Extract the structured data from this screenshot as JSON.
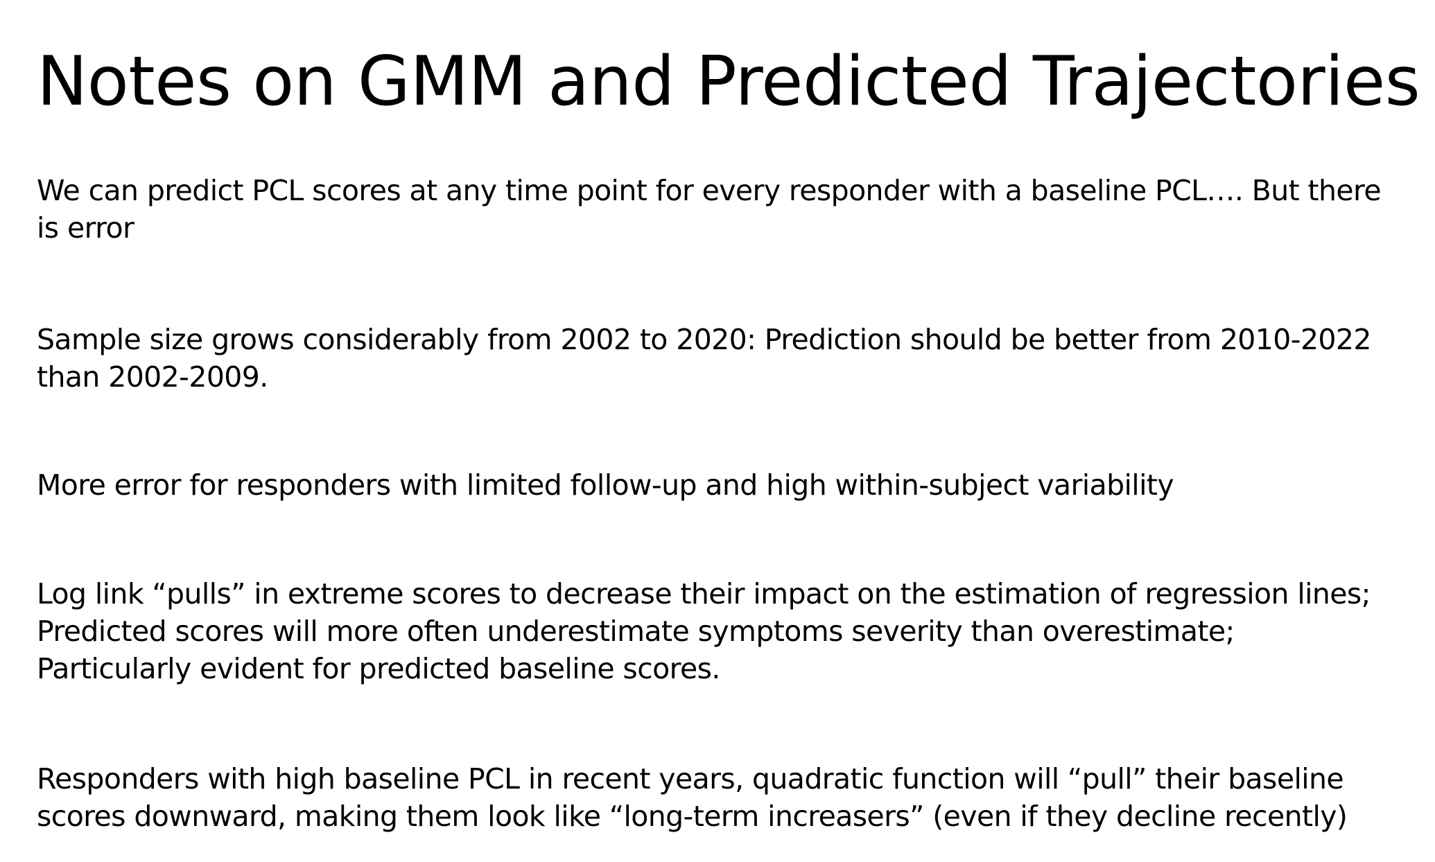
{
  "title": "Notes on GMM and Predicted Trajectories",
  "notes": [
    {
      "lines": [
        "We can predict PCL scores at any time point for every responder with a baseline PCL…. But there",
        "is error"
      ]
    },
    {
      "lines": [
        "Sample size grows considerably from 2002 to 2020: Prediction should be better from 2010-2022",
        "than 2002-2009."
      ]
    },
    {
      "lines": [
        "More error for responders with limited follow-up and high within-subject variability"
      ]
    },
    {
      "lines": [
        "Log link “pulls” in extreme scores to decrease their impact on the estimation of regression lines;",
        "Predicted scores will more often underestimate symptoms severity than overestimate;",
        "Particularly evident for predicted baseline scores."
      ]
    },
    {
      "lines": [
        "Responders with high baseline PCL in recent years, quadratic function will “pull” their baseline",
        "scores downward, making them look like “long-term increasers” (even if they decline recently)"
      ]
    }
  ]
}
